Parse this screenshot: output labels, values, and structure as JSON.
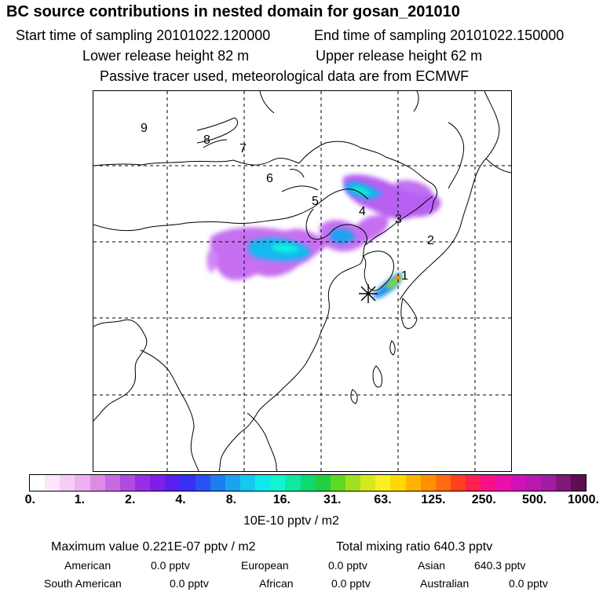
{
  "header": {
    "title": "BC  source contributions in nested domain for gosan_201010",
    "start_label": "Start time of sampling 20101022.120000",
    "end_label": "End time of sampling 20101022.150000",
    "lower_label": "Lower release height   82 m",
    "upper_label": "Upper release height   62 m",
    "tracer_label": "Passive tracer used, meteorological data are from ECMWF"
  },
  "map": {
    "track_labels": [
      "1",
      "2",
      "3",
      "4",
      "5",
      "6",
      "7",
      "8",
      "9"
    ],
    "release_marker": "asterisk-icon"
  },
  "colorbar": {
    "unit": "10E-10 pptv / m2",
    "ticks": [
      "0.",
      "1.",
      "2.",
      "4.",
      "8.",
      "16.",
      "31.",
      "63.",
      "125.",
      "250.",
      "500.",
      "1000."
    ],
    "colors": [
      "#ffffff",
      "#fbe6fb",
      "#f5ccf5",
      "#eeb0f0",
      "#e08ae8",
      "#c86be2",
      "#b04be0",
      "#9a2ee6",
      "#7c20e8",
      "#5a1ef0",
      "#3a30f4",
      "#2a52f2",
      "#1e7cf0",
      "#1aa4f0",
      "#14c8f0",
      "#10e8ee",
      "#10f4d0",
      "#10e8a0",
      "#10d870",
      "#20d040",
      "#60d820",
      "#a0e020",
      "#d8e820",
      "#f8f020",
      "#ffd800",
      "#ffb400",
      "#ff9000",
      "#ff6c10",
      "#ff4020",
      "#ff2050",
      "#f8108a",
      "#e810a8",
      "#d010b8",
      "#b818b0",
      "#a01ca0",
      "#801878",
      "#5c1050"
    ]
  },
  "footer": {
    "max_label": "Maximum value  0.221E-07 pptv / m2",
    "total_label": "Total mixing ratio      640.3 pptv",
    "american_label": "American",
    "american_value": "0.0 pptv",
    "european_label": "European",
    "european_value": "0.0 pptv",
    "asian_label": "Asian",
    "asian_value": "640.3 pptv",
    "south_american_label": "South American",
    "south_american_value": "0.0 pptv",
    "african_label": "African",
    "african_value": "0.0 pptv",
    "australian_label": "Australian",
    "australian_value": "0.0 pptv"
  }
}
